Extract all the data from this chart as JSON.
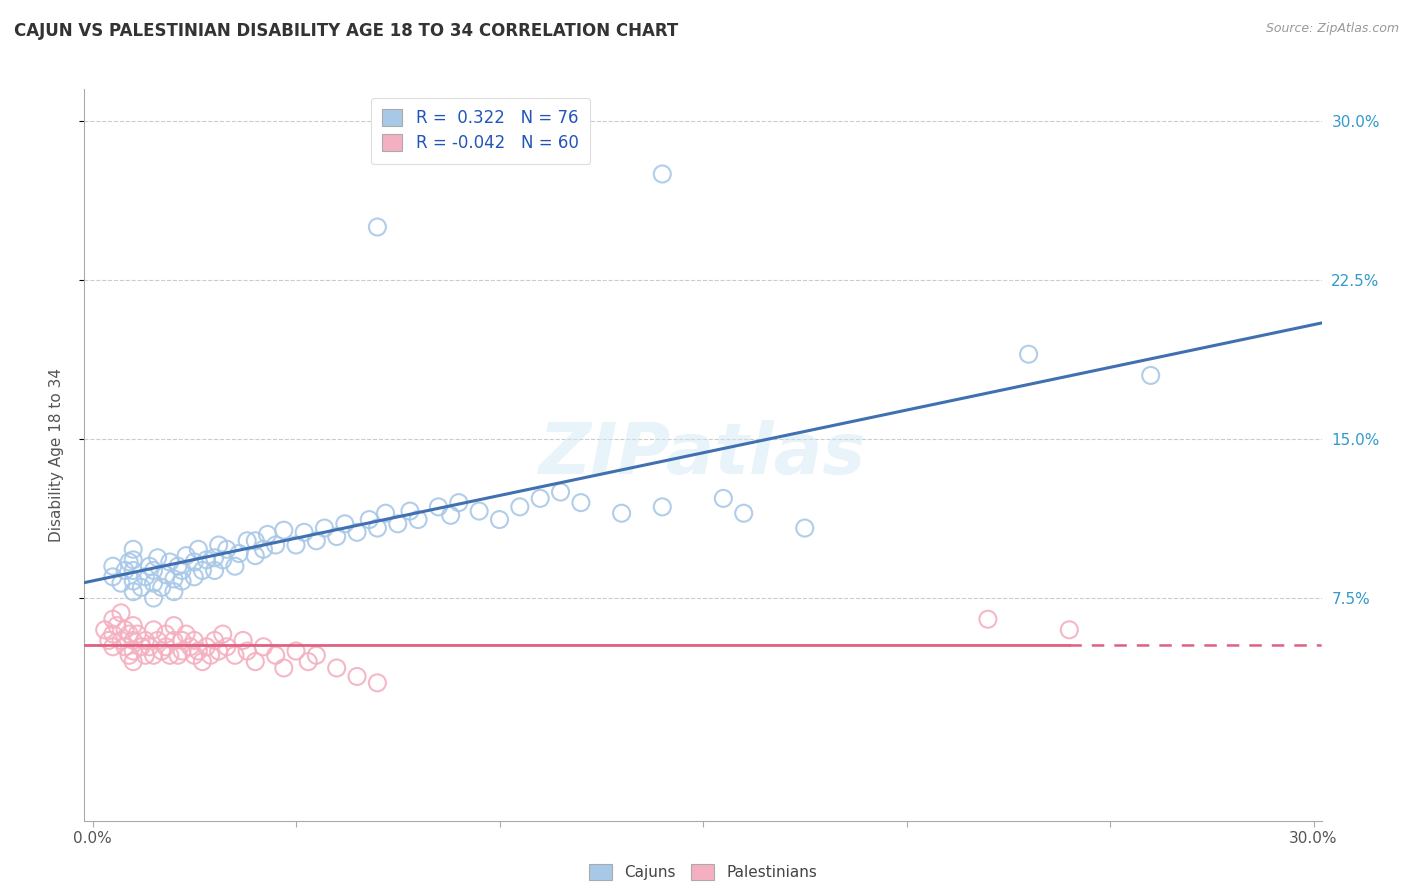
{
  "title": "CAJUN VS PALESTINIAN DISABILITY AGE 18 TO 34 CORRELATION CHART",
  "source": "Source: ZipAtlas.com",
  "ylabel": "Disability Age 18 to 34",
  "xlim": [
    -0.002,
    0.302
  ],
  "ylim": [
    -0.03,
    0.315
  ],
  "yticks": [
    0.075,
    0.15,
    0.225,
    0.3
  ],
  "ytick_labels": [
    "7.5%",
    "15.0%",
    "22.5%",
    "30.0%"
  ],
  "xticks": [
    0.0,
    0.05,
    0.1,
    0.15,
    0.2,
    0.25,
    0.3
  ],
  "cajun_R": "0.322",
  "cajun_N": "76",
  "palestinian_R": "-0.042",
  "palestinian_N": "60",
  "cajun_color": "#a8c8e8",
  "palestinian_color": "#f4b0c0",
  "cajun_line_color": "#4070b0",
  "palestinian_line_color": "#e06080",
  "watermark": "ZIPatlas",
  "cajun_x": [
    0.005,
    0.005,
    0.007,
    0.008,
    0.009,
    0.01,
    0.01,
    0.01,
    0.01,
    0.01,
    0.012,
    0.013,
    0.014,
    0.015,
    0.015,
    0.015,
    0.016,
    0.017,
    0.018,
    0.019,
    0.02,
    0.02,
    0.021,
    0.022,
    0.022,
    0.023,
    0.025,
    0.025,
    0.026,
    0.027,
    0.028,
    0.03,
    0.03,
    0.031,
    0.032,
    0.033,
    0.035,
    0.036,
    0.038,
    0.04,
    0.04,
    0.042,
    0.043,
    0.045,
    0.047,
    0.05,
    0.052,
    0.055,
    0.057,
    0.06,
    0.062,
    0.065,
    0.068,
    0.07,
    0.072,
    0.075,
    0.078,
    0.08,
    0.085,
    0.088,
    0.09,
    0.095,
    0.1,
    0.105,
    0.11,
    0.115,
    0.12,
    0.13,
    0.14,
    0.155,
    0.16,
    0.175,
    0.07,
    0.14,
    0.23,
    0.26
  ],
  "cajun_y": [
    0.085,
    0.09,
    0.082,
    0.088,
    0.092,
    0.078,
    0.083,
    0.088,
    0.093,
    0.098,
    0.08,
    0.085,
    0.09,
    0.075,
    0.082,
    0.088,
    0.094,
    0.08,
    0.086,
    0.092,
    0.078,
    0.084,
    0.09,
    0.083,
    0.088,
    0.095,
    0.085,
    0.092,
    0.098,
    0.088,
    0.093,
    0.088,
    0.094,
    0.1,
    0.093,
    0.098,
    0.09,
    0.096,
    0.102,
    0.095,
    0.102,
    0.098,
    0.105,
    0.1,
    0.107,
    0.1,
    0.106,
    0.102,
    0.108,
    0.104,
    0.11,
    0.106,
    0.112,
    0.108,
    0.115,
    0.11,
    0.116,
    0.112,
    0.118,
    0.114,
    0.12,
    0.116,
    0.112,
    0.118,
    0.122,
    0.125,
    0.12,
    0.115,
    0.118,
    0.122,
    0.115,
    0.108,
    0.25,
    0.275,
    0.19,
    0.18
  ],
  "palestinian_x": [
    0.003,
    0.004,
    0.005,
    0.005,
    0.005,
    0.006,
    0.007,
    0.007,
    0.008,
    0.008,
    0.009,
    0.009,
    0.01,
    0.01,
    0.01,
    0.01,
    0.011,
    0.012,
    0.013,
    0.013,
    0.014,
    0.015,
    0.015,
    0.016,
    0.017,
    0.018,
    0.018,
    0.019,
    0.02,
    0.02,
    0.021,
    0.022,
    0.022,
    0.023,
    0.024,
    0.025,
    0.025,
    0.026,
    0.027,
    0.028,
    0.029,
    0.03,
    0.031,
    0.032,
    0.033,
    0.035,
    0.037,
    0.038,
    0.04,
    0.042,
    0.045,
    0.047,
    0.05,
    0.053,
    0.055,
    0.06,
    0.065,
    0.07,
    0.22,
    0.24
  ],
  "palestinian_y": [
    0.06,
    0.055,
    0.065,
    0.058,
    0.052,
    0.062,
    0.068,
    0.055,
    0.06,
    0.052,
    0.058,
    0.048,
    0.055,
    0.062,
    0.05,
    0.045,
    0.058,
    0.052,
    0.048,
    0.055,
    0.052,
    0.048,
    0.06,
    0.055,
    0.05,
    0.058,
    0.052,
    0.048,
    0.055,
    0.062,
    0.048,
    0.055,
    0.05,
    0.058,
    0.052,
    0.048,
    0.055,
    0.05,
    0.045,
    0.052,
    0.048,
    0.055,
    0.05,
    0.058,
    0.052,
    0.048,
    0.055,
    0.05,
    0.045,
    0.052,
    0.048,
    0.042,
    0.05,
    0.045,
    0.048,
    0.042,
    0.038,
    0.035,
    0.065,
    0.06
  ]
}
